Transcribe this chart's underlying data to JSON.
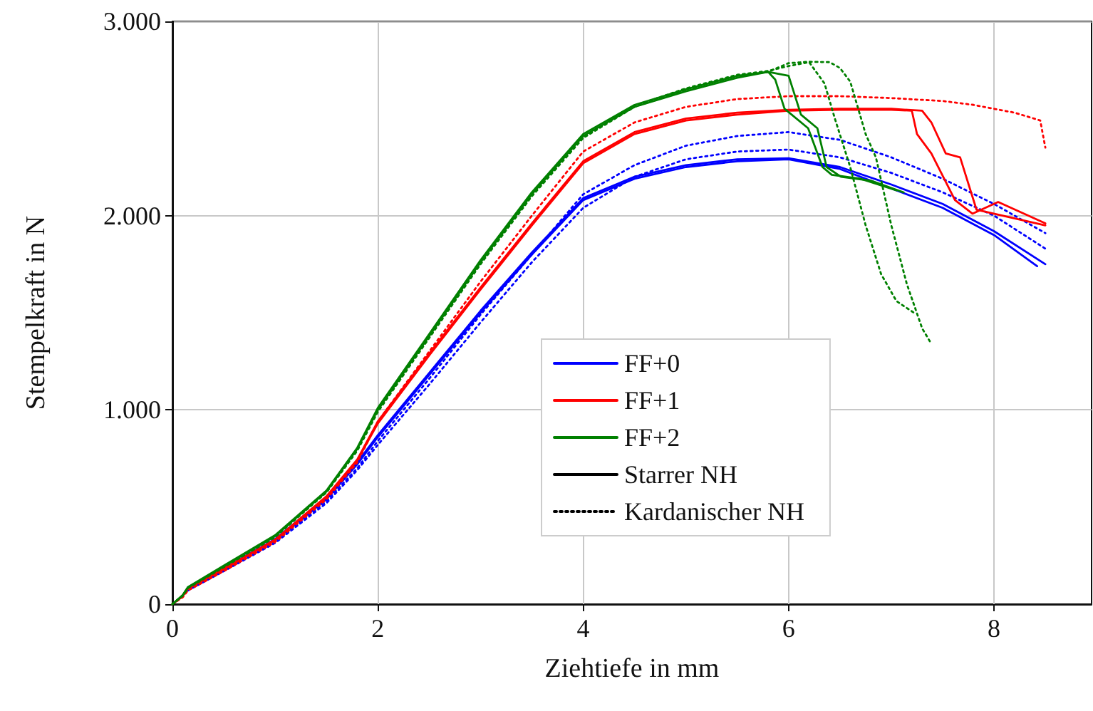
{
  "chart_data": {
    "type": "line",
    "xlabel": "Ziehtiefe in mm",
    "ylabel": "Stempelkraft in N",
    "xlim": [
      0,
      8.95
    ],
    "xticks": [
      0,
      2,
      4,
      6,
      8
    ],
    "ylim": [
      0,
      3000
    ],
    "yticks": [
      {
        "value": 0,
        "label": "0"
      },
      {
        "value": 1000,
        "label": "1.000"
      },
      {
        "value": 2000,
        "label": "2.000"
      },
      {
        "value": 3000,
        "label": "3.000"
      }
    ],
    "grid": true,
    "legend": "center",
    "marker": "none",
    "series": [
      {
        "name": "FF+0",
        "color": "#0000ff",
        "line_style": "solid",
        "x": [
          0.15,
          0.5,
          1,
          1.5,
          1.8,
          2,
          2.5,
          3,
          3.5,
          4,
          4.5,
          5,
          5.5,
          6,
          6.5,
          7,
          7.5,
          8,
          8.42
        ],
        "values": [
          80,
          180,
          330,
          540,
          720,
          860,
          1180,
          1500,
          1800,
          2080,
          2190,
          2250,
          2280,
          2290,
          2240,
          2140,
          2040,
          1900,
          1740
        ]
      },
      {
        "color": "#0000ff",
        "line_style": "solid",
        "x": [
          0.15,
          0.5,
          1,
          1.5,
          1.8,
          2,
          2.5,
          3,
          3.5,
          4,
          4.5,
          5,
          5.5,
          6,
          6.5,
          7,
          7.5,
          8,
          8.5
        ],
        "values": [
          85,
          185,
          335,
          550,
          730,
          870,
          1190,
          1510,
          1810,
          2090,
          2200,
          2260,
          2290,
          2295,
          2250,
          2160,
          2060,
          1920,
          1750
        ]
      },
      {
        "color": "#0000ff",
        "line_style": "dotted",
        "x": [
          0.15,
          0.5,
          1,
          1.5,
          1.8,
          2,
          2.5,
          3,
          3.5,
          4,
          4.5,
          5,
          5.5,
          6,
          6.5,
          7,
          7.5,
          8,
          8.5
        ],
        "values": [
          75,
          175,
          320,
          530,
          700,
          840,
          1160,
          1490,
          1800,
          2110,
          2260,
          2360,
          2410,
          2430,
          2390,
          2300,
          2190,
          2060,
          1910
        ]
      },
      {
        "color": "#0000ff",
        "line_style": "dotted",
        "x": [
          0.15,
          0.5,
          1,
          1.5,
          1.8,
          2,
          2.5,
          3,
          3.5,
          4,
          4.5,
          5,
          5.5,
          6,
          6.5,
          7,
          7.5,
          8,
          8.5
        ],
        "values": [
          70,
          170,
          315,
          520,
          690,
          820,
          1130,
          1450,
          1760,
          2040,
          2200,
          2290,
          2330,
          2340,
          2300,
          2220,
          2120,
          2000,
          1830
        ]
      },
      {
        "name": "FF+1",
        "color": "#ff0000",
        "line_style": "solid",
        "x": [
          0,
          0.1,
          0.15,
          0.5,
          1,
          1.5,
          1.8,
          2,
          2.5,
          3,
          3.5,
          4,
          4.5,
          5,
          5.5,
          6,
          6.5,
          7,
          7.2,
          7.25,
          7.39,
          7.62,
          7.79,
          8.04,
          8.5
        ],
        "values": [
          0,
          40,
          80,
          180,
          330,
          550,
          740,
          930,
          1280,
          1620,
          1950,
          2270,
          2420,
          2490,
          2520,
          2540,
          2545,
          2545,
          2540,
          2420,
          2320,
          2080,
          2010,
          2070,
          1960
        ]
      },
      {
        "color": "#ff0000",
        "line_style": "solid",
        "x": [
          0,
          0.1,
          0.15,
          0.5,
          1,
          1.5,
          1.8,
          2,
          2.5,
          3,
          3.5,
          4,
          4.5,
          5,
          5.5,
          6,
          6.5,
          7,
          7.3,
          7.39,
          7.53,
          7.67,
          7.83,
          8.5
        ],
        "values": [
          0,
          42,
          82,
          183,
          332,
          555,
          745,
          940,
          1290,
          1630,
          1960,
          2280,
          2430,
          2500,
          2530,
          2545,
          2550,
          2550,
          2540,
          2480,
          2320,
          2300,
          2030,
          1950
        ]
      },
      {
        "color": "#ff0000",
        "line_style": "dotted",
        "x": [
          0,
          0.1,
          0.15,
          0.5,
          1,
          1.5,
          1.8,
          2,
          2.5,
          3,
          3.5,
          4,
          4.5,
          5,
          5.5,
          6,
          6.5,
          7,
          7.5,
          7.8,
          8.2,
          8.45,
          8.5
        ],
        "values": [
          0,
          35,
          70,
          170,
          320,
          540,
          730,
          940,
          1300,
          1660,
          2000,
          2330,
          2480,
          2560,
          2600,
          2615,
          2615,
          2605,
          2590,
          2570,
          2530,
          2490,
          2350
        ]
      },
      {
        "name": "FF+2",
        "color": "#008000",
        "line_style": "solid",
        "x": [
          0,
          0.1,
          0.15,
          0.5,
          1,
          1.5,
          1.8,
          2,
          2.5,
          3,
          3.5,
          4,
          4.5,
          5,
          5.5,
          5.8,
          5.87,
          5.96,
          6.19,
          6.33,
          6.42,
          6.7,
          7.05
        ],
        "values": [
          0,
          45,
          85,
          195,
          350,
          580,
          800,
          1000,
          1380,
          1760,
          2110,
          2410,
          2560,
          2640,
          2710,
          2740,
          2700,
          2550,
          2450,
          2250,
          2210,
          2190,
          2130
        ]
      },
      {
        "color": "#008000",
        "line_style": "solid",
        "x": [
          0,
          0.1,
          0.15,
          0.5,
          1,
          1.5,
          1.8,
          2,
          2.5,
          3,
          3.5,
          4,
          4.5,
          5,
          5.5,
          5.8,
          6,
          6.12,
          6.28,
          6.37,
          6.51,
          6.8,
          7.12
        ],
        "values": [
          0,
          47,
          87,
          198,
          355,
          585,
          805,
          1010,
          1390,
          1770,
          2120,
          2420,
          2570,
          2650,
          2720,
          2740,
          2720,
          2520,
          2450,
          2250,
          2200,
          2180,
          2120
        ]
      },
      {
        "color": "#008000",
        "line_style": "dotted",
        "x": [
          0,
          0.1,
          0.15,
          0.5,
          1,
          1.5,
          1.8,
          2,
          2.5,
          3,
          3.5,
          4,
          4.5,
          5,
          5.5,
          5.8,
          6,
          6.2,
          6.4,
          6.5,
          6.6,
          6.75,
          6.85,
          7,
          7.15,
          7.3,
          7.39
        ],
        "values": [
          0,
          43,
          83,
          190,
          345,
          575,
          790,
          990,
          1370,
          1750,
          2100,
          2400,
          2560,
          2650,
          2720,
          2740,
          2785,
          2792,
          2790,
          2760,
          2690,
          2420,
          2300,
          1950,
          1650,
          1420,
          1340
        ]
      },
      {
        "color": "#008000",
        "line_style": "dotted",
        "x": [
          0,
          0.1,
          0.15,
          0.5,
          1,
          1.5,
          1.8,
          2,
          2.5,
          3,
          3.5,
          4,
          4.5,
          5,
          5.5,
          5.8,
          6,
          6.2,
          6.35,
          6.45,
          6.6,
          6.75,
          6.9,
          7.05,
          7.22
        ],
        "values": [
          0,
          44,
          84,
          192,
          348,
          578,
          795,
          995,
          1375,
          1755,
          2105,
          2405,
          2565,
          2655,
          2725,
          2745,
          2770,
          2790,
          2680,
          2500,
          2250,
          1950,
          1700,
          1560,
          1500
        ]
      },
      {
        "name": "Starrer NH",
        "color": "#000000",
        "line_style": "solid"
      },
      {
        "name": "Kardanischer NH",
        "color": "#000000",
        "line_style": "dotted"
      }
    ]
  }
}
